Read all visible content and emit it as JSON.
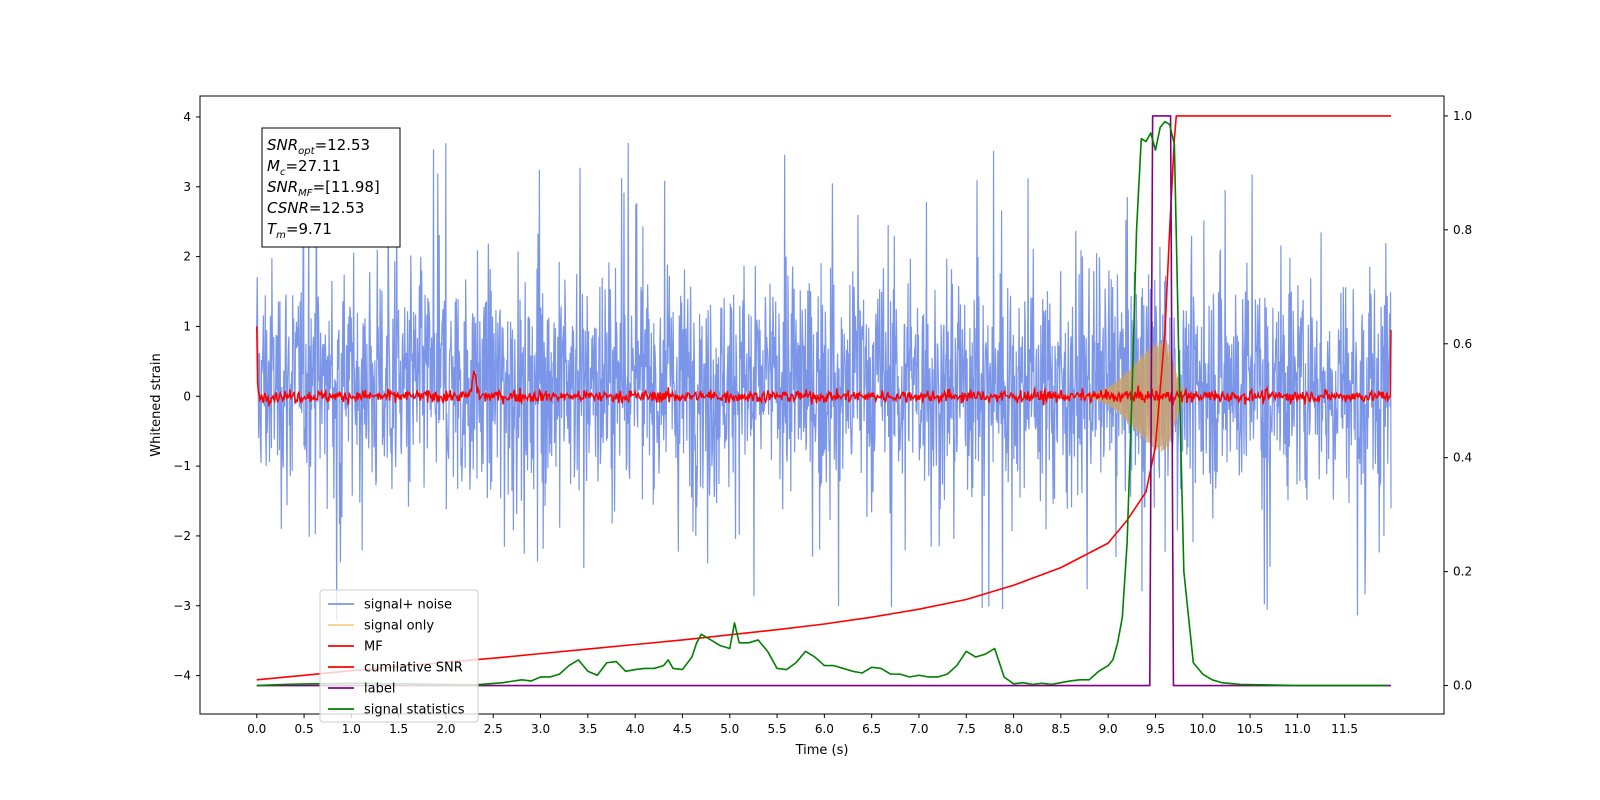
{
  "chart_data": {
    "type": "line",
    "xlabel": "Time (s)",
    "ylabel": "Whitened strain",
    "xlim": [
      -0.6,
      12.55
    ],
    "ylim": [
      -4.55,
      4.3
    ],
    "y2lim": [
      -0.05,
      1.035
    ],
    "xticks": [
      0.0,
      0.5,
      1.0,
      1.5,
      2.0,
      2.5,
      3.0,
      3.5,
      4.0,
      4.5,
      5.0,
      5.5,
      6.0,
      6.5,
      7.0,
      7.5,
      8.0,
      8.5,
      9.0,
      9.5,
      10.0,
      10.5,
      11.0,
      11.5
    ],
    "xtick_labels": [
      "0.0",
      "0.5",
      "1.0",
      "1.5",
      "2.0",
      "2.5",
      "3.0",
      "3.5",
      "4.0",
      "4.5",
      "5.0",
      "5.5",
      "6.0",
      "6.5",
      "7.0",
      "7.5",
      "8.0",
      "8.5",
      "9.0",
      "9.5",
      "10.0",
      "10.5",
      "11.0",
      "11.5"
    ],
    "yticks": [
      4,
      3,
      2,
      1,
      0,
      -1,
      -2,
      -3,
      -4
    ],
    "ytick_labels": [
      "4",
      "3",
      "2",
      "1",
      "0",
      "−1",
      "−2",
      "−3",
      "−4"
    ],
    "y2ticks": [
      1.0,
      0.8,
      0.6,
      0.4,
      0.2,
      0.0
    ],
    "y2tick_labels": [
      "1.0",
      "0.8",
      "0.6",
      "0.4",
      "0.2",
      "0.0"
    ],
    "grid": false,
    "legend_position": "bottom-left",
    "annotation": {
      "lines": [
        {
          "base": "SNR",
          "sub": "opt",
          "value": "=12.53"
        },
        {
          "base": "M",
          "sub": "c",
          "value": "=27.11"
        },
        {
          "base": "SNR",
          "sub": "MF",
          "value": "=[11.98]"
        },
        {
          "base": "CSNR",
          "sub": "",
          "value": "=12.53"
        },
        {
          "base": "T",
          "sub": "m",
          "value": "=9.71"
        }
      ]
    },
    "series": [
      {
        "name": "signal+ noise",
        "color": "#7b96e8",
        "axis": "left",
        "style": "noise",
        "x_range": [
          0.0,
          11.99
        ],
        "typical_band": [
          -1.3,
          1.7
        ],
        "max_y": 3.85,
        "min_y": -3.2
      },
      {
        "name": "signal only",
        "color": "#f7d38a",
        "axis": "left",
        "style": "chirp",
        "peak_x": 9.6,
        "peak_amplitude": 0.8
      },
      {
        "name": "MF",
        "color": "#ff0000",
        "axis": "left",
        "style": "mf",
        "x_range": [
          0.0,
          11.99
        ],
        "baseline": 0.0,
        "noise_amplitude": 0.1,
        "bumps": [
          {
            "x": 2.3,
            "y": 0.33
          }
        ]
      },
      {
        "name": "cumilative SNR",
        "color": "#ff0000",
        "axis": "right",
        "x": [
          0.0,
          0.5,
          1.0,
          1.5,
          2.0,
          2.5,
          3.0,
          3.5,
          4.0,
          4.5,
          5.0,
          5.5,
          6.0,
          6.5,
          7.0,
          7.5,
          8.0,
          8.5,
          9.0,
          9.2,
          9.4,
          9.5,
          9.6,
          9.65,
          9.7,
          9.72,
          9.75,
          11.99
        ],
        "y": [
          0.01,
          0.018,
          0.026,
          0.033,
          0.041,
          0.048,
          0.056,
          0.064,
          0.072,
          0.08,
          0.089,
          0.098,
          0.108,
          0.12,
          0.134,
          0.151,
          0.176,
          0.207,
          0.25,
          0.29,
          0.34,
          0.42,
          0.62,
          0.8,
          0.96,
          1.0,
          1.0,
          1.0
        ]
      },
      {
        "name": "label",
        "color": "#800080",
        "axis": "right",
        "x": [
          0.0,
          9.44,
          9.47,
          9.66,
          9.69,
          11.99
        ],
        "y": [
          0.0,
          0.0,
          1.0,
          1.0,
          0.0,
          0.0
        ]
      },
      {
        "name": "signal statistics",
        "color": "#008000",
        "axis": "right",
        "x": [
          0.0,
          0.3,
          0.6,
          1.0,
          1.5,
          2.0,
          2.3,
          2.6,
          2.8,
          2.9,
          3.0,
          3.1,
          3.2,
          3.3,
          3.4,
          3.5,
          3.6,
          3.7,
          3.8,
          3.9,
          4.0,
          4.1,
          4.2,
          4.3,
          4.35,
          4.4,
          4.5,
          4.6,
          4.65,
          4.7,
          4.8,
          4.9,
          5.0,
          5.05,
          5.1,
          5.2,
          5.3,
          5.4,
          5.5,
          5.6,
          5.7,
          5.8,
          5.9,
          6.0,
          6.1,
          6.2,
          6.3,
          6.4,
          6.5,
          6.6,
          6.7,
          6.8,
          6.9,
          7.0,
          7.1,
          7.2,
          7.3,
          7.4,
          7.5,
          7.6,
          7.7,
          7.8,
          7.9,
          8.0,
          8.1,
          8.2,
          8.3,
          8.4,
          8.5,
          8.6,
          8.7,
          8.8,
          8.9,
          9.0,
          9.05,
          9.1,
          9.15,
          9.2,
          9.25,
          9.3,
          9.35,
          9.4,
          9.45,
          9.5,
          9.55,
          9.6,
          9.65,
          9.7,
          9.75,
          9.8,
          9.85,
          9.9,
          10.0,
          10.1,
          10.2,
          10.4,
          10.7,
          11.0,
          11.5,
          11.95
        ],
        "y": [
          0.0,
          0.002,
          0.003,
          0.004,
          0.003,
          0.002,
          0.001,
          0.005,
          0.01,
          0.008,
          0.015,
          0.015,
          0.02,
          0.035,
          0.045,
          0.025,
          0.018,
          0.04,
          0.042,
          0.025,
          0.028,
          0.03,
          0.03,
          0.035,
          0.045,
          0.03,
          0.028,
          0.05,
          0.075,
          0.09,
          0.08,
          0.07,
          0.065,
          0.11,
          0.075,
          0.075,
          0.08,
          0.06,
          0.03,
          0.028,
          0.04,
          0.06,
          0.05,
          0.035,
          0.035,
          0.03,
          0.025,
          0.022,
          0.032,
          0.03,
          0.02,
          0.02,
          0.015,
          0.018,
          0.015,
          0.015,
          0.02,
          0.035,
          0.06,
          0.05,
          0.055,
          0.065,
          0.015,
          0.003,
          0.005,
          0.002,
          0.004,
          0.002,
          0.005,
          0.008,
          0.01,
          0.01,
          0.025,
          0.035,
          0.045,
          0.075,
          0.12,
          0.25,
          0.5,
          0.8,
          0.96,
          0.955,
          0.97,
          0.94,
          0.98,
          0.99,
          0.985,
          0.95,
          0.55,
          0.2,
          0.12,
          0.04,
          0.02,
          0.01,
          0.005,
          0.002,
          0.001,
          0.0,
          0.0,
          0.0
        ]
      }
    ]
  }
}
